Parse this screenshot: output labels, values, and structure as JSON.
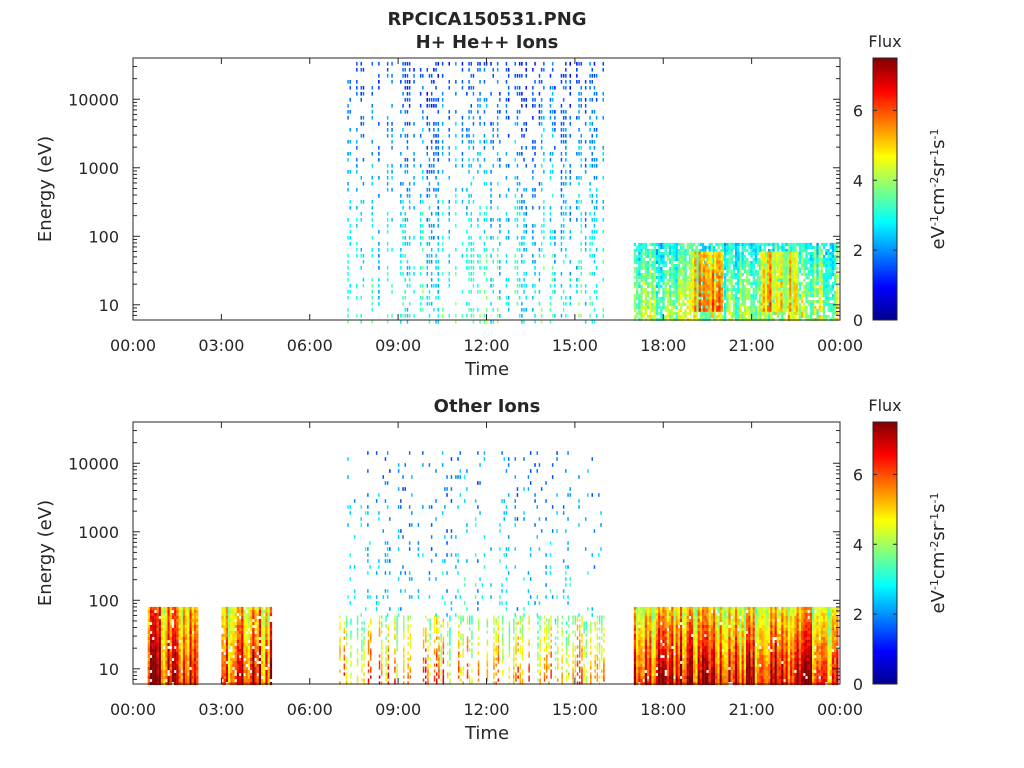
{
  "figure_title": "RPCICA150531.PNG",
  "colormap": [
    "#00008f",
    "#0000ff",
    "#0080ff",
    "#00ffff",
    "#80ff80",
    "#ffff00",
    "#ff8000",
    "#ff0000",
    "#800000"
  ],
  "chart_data": [
    {
      "type": "heatmap",
      "title": "H+ He++ Ions",
      "xlabel": "Time",
      "ylabel": "Energy (eV)",
      "x_ticks": [
        "00:00",
        "03:00",
        "06:00",
        "09:00",
        "12:00",
        "15:00",
        "18:00",
        "21:00",
        "00:00"
      ],
      "x_range_hours": [
        0,
        24
      ],
      "y_scale": "log",
      "y_range_eV": [
        6,
        40000
      ],
      "y_ticks": [
        {
          "value": 10,
          "label": "10"
        },
        {
          "value": 100,
          "label": "100"
        },
        {
          "value": 1000,
          "label": "1000"
        },
        {
          "value": 10000,
          "label": "10000"
        }
      ],
      "colorbar": {
        "label": "Flux",
        "unit_label": "eV-1cm-2sr-1s-1",
        "range": [
          0,
          7.5
        ],
        "ticks": [
          0,
          2,
          4,
          6
        ]
      },
      "regions": [
        {
          "t_start": 7.2,
          "t_end": 16.0,
          "e_min": 6,
          "e_max": 35000,
          "flux_low_energy": 3.2,
          "flux_high_energy": 1.4,
          "density": 0.45,
          "striped": true
        },
        {
          "t_start": 17.0,
          "t_end": 23.9,
          "e_min": 6,
          "e_max": 80,
          "flux_low_energy": 4.2,
          "flux_high_energy": 3.0,
          "density": 0.8,
          "striped": false
        },
        {
          "t_start": 18.9,
          "t_end": 20.0,
          "e_min": 8,
          "e_max": 60,
          "flux_low_energy": 5.2,
          "flux_high_energy": 4.6,
          "density": 0.9,
          "striped": false
        },
        {
          "t_start": 21.3,
          "t_end": 22.5,
          "e_min": 8,
          "e_max": 60,
          "flux_low_energy": 5.0,
          "flux_high_energy": 4.5,
          "density": 0.9,
          "striped": false
        }
      ]
    },
    {
      "type": "heatmap",
      "title": "Other Ions",
      "xlabel": "Time",
      "ylabel": "Energy (eV)",
      "x_ticks": [
        "00:00",
        "03:00",
        "06:00",
        "09:00",
        "12:00",
        "15:00",
        "18:00",
        "21:00",
        "00:00"
      ],
      "x_range_hours": [
        0,
        24
      ],
      "y_scale": "log",
      "y_range_eV": [
        6,
        40000
      ],
      "y_ticks": [
        {
          "value": 10,
          "label": "10"
        },
        {
          "value": 100,
          "label": "100"
        },
        {
          "value": 1000,
          "label": "1000"
        },
        {
          "value": 10000,
          "label": "10000"
        }
      ],
      "colorbar": {
        "label": "Flux",
        "unit_label": "eV-1cm-2sr-1s-1",
        "range": [
          0,
          7.5
        ],
        "ticks": [
          0,
          2,
          4,
          6
        ]
      },
      "regions": [
        {
          "t_start": 0.5,
          "t_end": 2.2,
          "e_min": 6,
          "e_max": 80,
          "flux_low_energy": 6.6,
          "flux_high_energy": 5.2,
          "density": 0.95,
          "striped": false
        },
        {
          "t_start": 3.0,
          "t_end": 4.7,
          "e_min": 6,
          "e_max": 80,
          "flux_low_energy": 6.4,
          "flux_high_energy": 4.8,
          "density": 0.9,
          "striped": false
        },
        {
          "t_start": 7.0,
          "t_end": 16.0,
          "e_min": 6,
          "e_max": 60,
          "flux_low_energy": 5.6,
          "flux_high_energy": 3.8,
          "density": 0.6,
          "striped": true
        },
        {
          "t_start": 7.2,
          "t_end": 16.0,
          "e_min": 60,
          "e_max": 15000,
          "flux_low_energy": 2.8,
          "flux_high_energy": 1.8,
          "density": 0.18,
          "striped": true
        },
        {
          "t_start": 17.0,
          "t_end": 23.9,
          "e_min": 6,
          "e_max": 80,
          "flux_low_energy": 6.6,
          "flux_high_energy": 4.6,
          "density": 0.97,
          "striped": false
        }
      ]
    }
  ]
}
